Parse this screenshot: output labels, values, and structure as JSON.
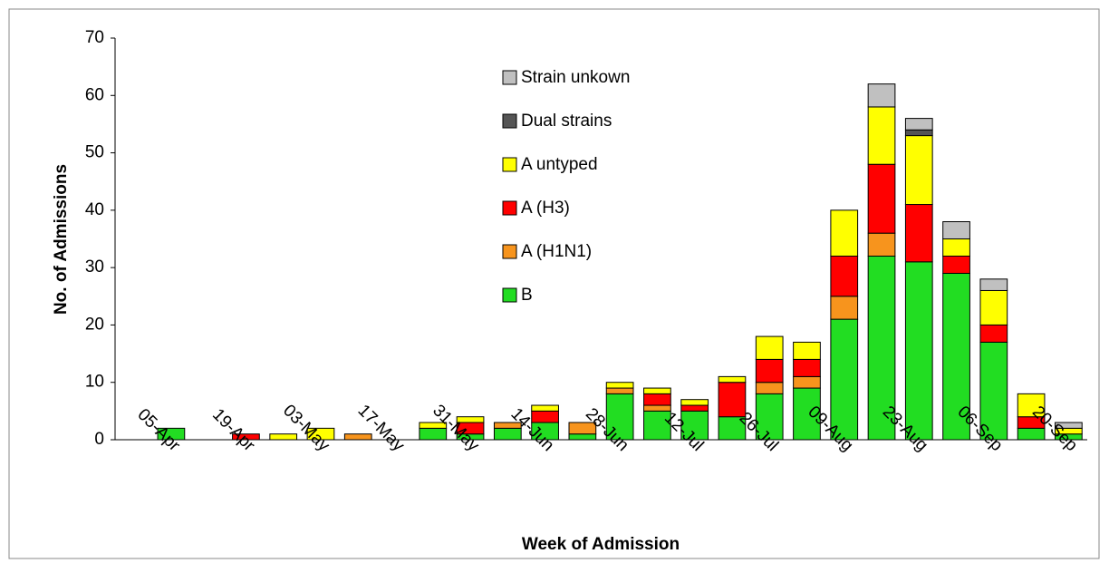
{
  "chart_data": {
    "type": "stacked_bar",
    "x_label": "Week of Admission",
    "y_label": "No. of Admissions",
    "categories": [
      null,
      "05-Apr",
      null,
      "19-Apr",
      null,
      "03-May",
      null,
      "17-May",
      null,
      "31-May",
      null,
      "14-Jun",
      null,
      "28-Jun",
      null,
      "12-Jul",
      null,
      "26-Jul",
      null,
      "09-Aug",
      null,
      "23-Aug",
      null,
      "06-Sep",
      null,
      "20-Sep"
    ],
    "series": [
      {
        "name": "B",
        "color": "#22dd22",
        "values": [
          0,
          2,
          0,
          0,
          0,
          0,
          0,
          0,
          2,
          1,
          2,
          3,
          1,
          8,
          5,
          5,
          4,
          8,
          9,
          21,
          32,
          31,
          29,
          17,
          2,
          1
        ]
      },
      {
        "name": "A (H1N1)",
        "color": "#f7941d",
        "values": [
          0,
          0,
          0,
          0,
          0,
          0,
          1,
          0,
          0,
          0,
          1,
          0,
          2,
          1,
          1,
          0,
          0,
          2,
          2,
          4,
          4,
          0,
          0,
          0,
          0,
          0
        ]
      },
      {
        "name": "A (H3)",
        "color": "#ff0000",
        "values": [
          0,
          0,
          0,
          1,
          0,
          0,
          0,
          0,
          0,
          2,
          0,
          2,
          0,
          0,
          2,
          1,
          6,
          4,
          3,
          7,
          12,
          10,
          3,
          3,
          2,
          0
        ]
      },
      {
        "name": "A untyped",
        "color": "#ffff00",
        "values": [
          0,
          0,
          0,
          0,
          1,
          2,
          0,
          0,
          1,
          1,
          0,
          1,
          0,
          1,
          1,
          1,
          1,
          4,
          3,
          8,
          10,
          12,
          3,
          6,
          4,
          1
        ]
      },
      {
        "name": "Dual strains",
        "color": "#555555",
        "values": [
          0,
          0,
          0,
          0,
          0,
          0,
          0,
          0,
          0,
          0,
          0,
          0,
          0,
          0,
          0,
          0,
          0,
          0,
          0,
          0,
          0,
          1,
          0,
          0,
          0,
          0
        ]
      },
      {
        "name": "Strain unkown",
        "color": "#c0c0c0",
        "values": [
          0,
          0,
          0,
          0,
          0,
          0,
          0,
          0,
          0,
          0,
          0,
          0,
          0,
          0,
          0,
          0,
          0,
          0,
          0,
          0,
          4,
          2,
          3,
          2,
          0,
          1
        ]
      }
    ],
    "ylim": [
      0,
      70
    ],
    "yticks": [
      0,
      10,
      20,
      30,
      40,
      50,
      60,
      70
    ],
    "grid": false
  }
}
